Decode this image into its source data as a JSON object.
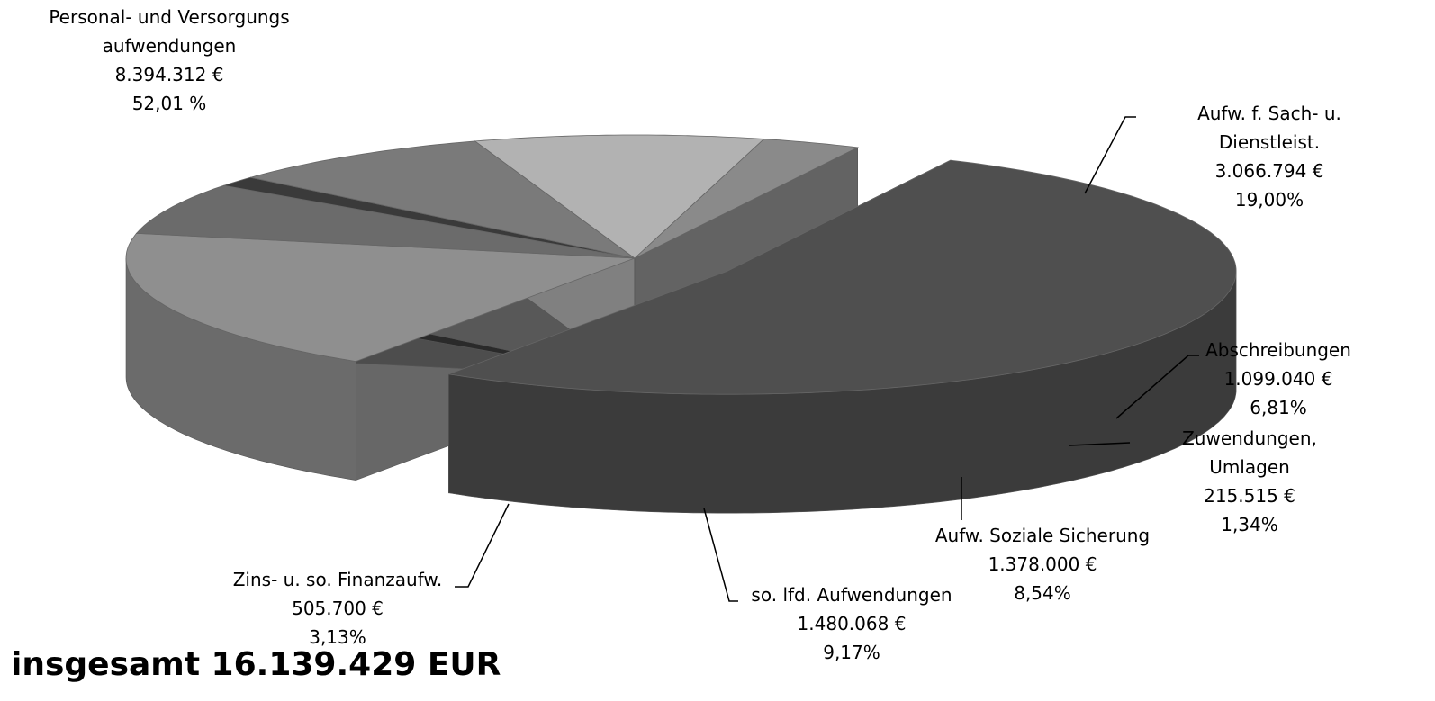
{
  "chart_data": {
    "type": "pie",
    "categories": [
      "Personal- und Versorgungs\naufwendungen",
      "Aufw. f. Sach- u. Dienstleist.",
      "Abschreibungen",
      "Zuwendungen, Umlagen",
      "Aufw. Soziale Sicherung",
      "so. lfd. Aufwendungen",
      "Zins- u. so. Finanzaufw."
    ],
    "values": [
      8394312,
      3066794,
      1099040,
      215515,
      1378000,
      1480068,
      505700
    ],
    "value_labels": [
      "8.394.312 €",
      "3.066.794 €",
      "1.099.040 €",
      "215.515 €",
      "1.378.000 €",
      "1.480.068 €",
      "505.700 €"
    ],
    "percentages": [
      52.01,
      19.0,
      6.81,
      1.34,
      8.54,
      9.17,
      3.13
    ],
    "percentage_labels": [
      "52,01 %",
      "19,00%",
      "6,81%",
      "1,34%",
      "8,54%",
      "9,17%",
      "3,13%"
    ],
    "colors": [
      "#4f4f4f",
      "#8f8f8f",
      "#6b6b6b",
      "#3a3a3a",
      "#7a7a7a",
      "#b2b2b2",
      "#8a8a8a"
    ],
    "exploded": [
      true,
      false,
      false,
      false,
      false,
      false,
      false
    ],
    "total": "insgesamt 16.139.429 EUR"
  }
}
